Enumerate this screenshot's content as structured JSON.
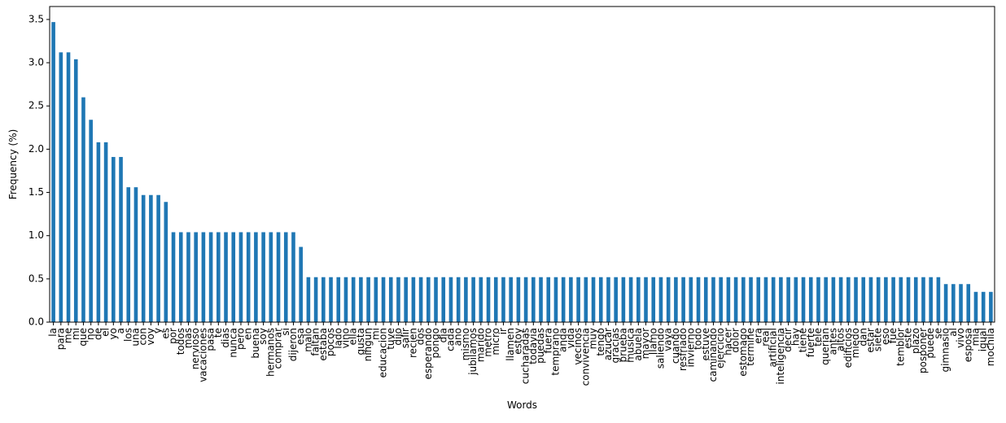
{
  "chart_data": {
    "type": "bar",
    "xlabel": "Words",
    "ylabel": "Frequency (%)",
    "ylim": [
      0,
      3.65
    ],
    "yticks": [
      "0.0",
      "0.5",
      "1.0",
      "1.5",
      "2.0",
      "2.5",
      "3.0",
      "3.5"
    ],
    "ytick_values": [
      0,
      0.5,
      1.0,
      1.5,
      2.0,
      2.5,
      3.0,
      3.5
    ],
    "bar_color": "#1f77b4",
    "grid": false,
    "legend": "none",
    "categories": [
      "la",
      "para",
      "me",
      "mi",
      "que",
      "no",
      "de",
      "el",
      "yo",
      "a",
      "los",
      "una",
      "con",
      "voy",
      "y",
      "es",
      "por",
      "todos",
      "mas",
      "nervioso",
      "vacaciones",
      "pasa",
      "te",
      "dias",
      "nunca",
      "pero",
      "en",
      "buena",
      "soy",
      "hermanos",
      "comprar",
      "si",
      "dijeron",
      "esa",
      "malo",
      "faltan",
      "estaba",
      "pocos",
      "lado",
      "vino",
      "ella",
      "gusta",
      "ningun",
      "mi",
      "educacion",
      "tuve",
      "dijo",
      "salir",
      "recien",
      "dos",
      "esperando",
      "pongo",
      "dia",
      "cada",
      "ano",
      "mismo",
      "jubilamos",
      "marido",
      "metro",
      "micro",
      "ir",
      "llamen",
      "estoy",
      "cucharadas",
      "todavia",
      "puedas",
      "fuera",
      "temprano",
      "anda",
      "vida",
      "vecinos",
      "convivencia",
      "muy",
      "tengo",
      "azucar",
      "gracias",
      "prueba",
      "musica",
      "abuela",
      "mayor",
      "llamo",
      "saliendo",
      "vaya",
      "cuando",
      "resfriado",
      "invierno",
      "todo",
      "estuve",
      "caminando",
      "ejercicio",
      "hacer",
      "dolor",
      "estomago",
      "termine",
      "era",
      "real",
      "artificial",
      "inteligencia",
      "decir",
      "hay",
      "tiene",
      "fuerte",
      "tele",
      "querian",
      "antes",
      "altos",
      "edificios",
      "miedo",
      "dan",
      "estar",
      "siete",
      "eso",
      "fue",
      "temblor",
      "este",
      "plazo",
      "posponer",
      "puede",
      "se",
      "gimnasio",
      "al",
      "vivo",
      "esposa",
      "mia",
      "igual",
      "mochila"
    ],
    "values": [
      3.47,
      3.12,
      3.12,
      3.04,
      2.6,
      2.34,
      2.08,
      2.08,
      1.91,
      1.91,
      1.56,
      1.56,
      1.47,
      1.47,
      1.47,
      1.39,
      1.04,
      1.04,
      1.04,
      1.04,
      1.04,
      1.04,
      1.04,
      1.04,
      1.04,
      1.04,
      1.04,
      1.04,
      1.04,
      1.04,
      1.04,
      1.04,
      1.04,
      0.87,
      0.52,
      0.52,
      0.52,
      0.52,
      0.52,
      0.52,
      0.52,
      0.52,
      0.52,
      0.52,
      0.52,
      0.52,
      0.52,
      0.52,
      0.52,
      0.52,
      0.52,
      0.52,
      0.52,
      0.52,
      0.52,
      0.52,
      0.52,
      0.52,
      0.52,
      0.52,
      0.52,
      0.52,
      0.52,
      0.52,
      0.52,
      0.52,
      0.52,
      0.52,
      0.52,
      0.52,
      0.52,
      0.52,
      0.52,
      0.52,
      0.52,
      0.52,
      0.52,
      0.52,
      0.52,
      0.52,
      0.52,
      0.52,
      0.52,
      0.52,
      0.52,
      0.52,
      0.52,
      0.52,
      0.52,
      0.52,
      0.52,
      0.52,
      0.52,
      0.52,
      0.52,
      0.52,
      0.52,
      0.52,
      0.52,
      0.52,
      0.52,
      0.52,
      0.52,
      0.52,
      0.52,
      0.52,
      0.52,
      0.52,
      0.52,
      0.52,
      0.52,
      0.52,
      0.52,
      0.52,
      0.52,
      0.52,
      0.52,
      0.52,
      0.52,
      0.44,
      0.44,
      0.44,
      0.44,
      0.35,
      0.35,
      0.35
    ]
  }
}
